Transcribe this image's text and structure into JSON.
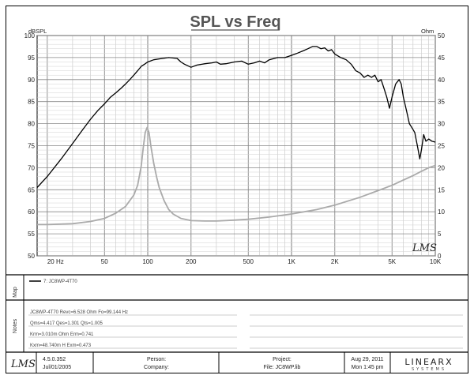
{
  "chart_data": {
    "type": "line",
    "title": "SPL vs Freq",
    "ylabel_left": "dBSPL",
    "ylabel_right": "Ohm",
    "xscale": "log",
    "xlim": [
      17,
      10000
    ],
    "ylim_left": [
      50,
      100
    ],
    "ylim_right": [
      0,
      50
    ],
    "x_ticks": [
      {
        "value": 20,
        "label": "20 Hz"
      },
      {
        "value": 50,
        "label": "50"
      },
      {
        "value": 100,
        "label": "100"
      },
      {
        "value": 200,
        "label": "200"
      },
      {
        "value": 500,
        "label": "500"
      },
      {
        "value": 1000,
        "label": "1K"
      },
      {
        "value": 2000,
        "label": "2K"
      },
      {
        "value": 5000,
        "label": "5K"
      },
      {
        "value": 10000,
        "label": "10K"
      }
    ],
    "y_ticks_left": [
      "50",
      "55",
      "60",
      "65",
      "70",
      "75",
      "80",
      "85",
      "90",
      "95",
      "100"
    ],
    "y_ticks_right": [
      "0",
      "5",
      "10",
      "15",
      "20",
      "25",
      "30",
      "35",
      "40",
      "45",
      "50"
    ],
    "grid": true,
    "series": [
      {
        "axis": "left",
        "color": "#000000",
        "points": [
          [
            17,
            65.5
          ],
          [
            20,
            68
          ],
          [
            25,
            72
          ],
          [
            30,
            75.5
          ],
          [
            35,
            78.5
          ],
          [
            40,
            81
          ],
          [
            45,
            83
          ],
          [
            50,
            84.5
          ],
          [
            55,
            86
          ],
          [
            60,
            87
          ],
          [
            65,
            88
          ],
          [
            70,
            89
          ],
          [
            75,
            90
          ],
          [
            80,
            91
          ],
          [
            85,
            92
          ],
          [
            90,
            93
          ],
          [
            95,
            93.5
          ],
          [
            100,
            94
          ],
          [
            110,
            94.5
          ],
          [
            120,
            94.7
          ],
          [
            140,
            95
          ],
          [
            160,
            94.8
          ],
          [
            170,
            94
          ],
          [
            180,
            93.5
          ],
          [
            200,
            92.8
          ],
          [
            220,
            93.3
          ],
          [
            250,
            93.6
          ],
          [
            280,
            93.8
          ],
          [
            300,
            94
          ],
          [
            320,
            93.5
          ],
          [
            350,
            93.6
          ],
          [
            400,
            94
          ],
          [
            450,
            94.2
          ],
          [
            500,
            93.5
          ],
          [
            550,
            93.8
          ],
          [
            600,
            94.2
          ],
          [
            650,
            93.8
          ],
          [
            700,
            94.5
          ],
          [
            800,
            95
          ],
          [
            900,
            95
          ],
          [
            1000,
            95.5
          ],
          [
            1100,
            96
          ],
          [
            1200,
            96.5
          ],
          [
            1300,
            97
          ],
          [
            1400,
            97.5
          ],
          [
            1500,
            97.5
          ],
          [
            1600,
            97
          ],
          [
            1700,
            97.2
          ],
          [
            1800,
            96.5
          ],
          [
            1900,
            96.8
          ],
          [
            2000,
            95.8
          ],
          [
            2200,
            95
          ],
          [
            2400,
            94.5
          ],
          [
            2600,
            93.5
          ],
          [
            2800,
            92
          ],
          [
            3000,
            91.5
          ],
          [
            3200,
            90.5
          ],
          [
            3400,
            91
          ],
          [
            3600,
            90.5
          ],
          [
            3800,
            91
          ],
          [
            4000,
            89.5
          ],
          [
            4200,
            90
          ],
          [
            4400,
            88
          ],
          [
            4600,
            86
          ],
          [
            4800,
            83.5
          ],
          [
            5000,
            86
          ],
          [
            5300,
            89
          ],
          [
            5600,
            90
          ],
          [
            5800,
            89
          ],
          [
            6000,
            86
          ],
          [
            6300,
            83
          ],
          [
            6600,
            80
          ],
          [
            6900,
            79
          ],
          [
            7200,
            78
          ],
          [
            7500,
            75
          ],
          [
            7800,
            72
          ],
          [
            8000,
            74
          ],
          [
            8300,
            77.5
          ],
          [
            8600,
            76
          ],
          [
            9000,
            76.5
          ],
          [
            9500,
            76
          ],
          [
            10000,
            75.8
          ]
        ]
      },
      {
        "axis": "right",
        "color": "#aaaaaa",
        "points": [
          [
            17,
            7.1
          ],
          [
            20,
            7.1
          ],
          [
            30,
            7.3
          ],
          [
            40,
            7.8
          ],
          [
            50,
            8.5
          ],
          [
            60,
            9.7
          ],
          [
            70,
            11.2
          ],
          [
            80,
            13.8
          ],
          [
            85,
            16
          ],
          [
            90,
            20.3
          ],
          [
            93,
            24.5
          ],
          [
            96,
            28
          ],
          [
            99,
            29.1
          ],
          [
            102,
            28
          ],
          [
            105,
            25
          ],
          [
            110,
            21
          ],
          [
            115,
            18
          ],
          [
            120,
            15.5
          ],
          [
            130,
            12.5
          ],
          [
            140,
            10.5
          ],
          [
            150,
            9.5
          ],
          [
            170,
            8.5
          ],
          [
            200,
            8
          ],
          [
            250,
            7.9
          ],
          [
            300,
            7.9
          ],
          [
            400,
            8.1
          ],
          [
            500,
            8.3
          ],
          [
            700,
            8.8
          ],
          [
            1000,
            9.5
          ],
          [
            1500,
            10.5
          ],
          [
            2000,
            11.5
          ],
          [
            3000,
            13.3
          ],
          [
            4000,
            14.8
          ],
          [
            5000,
            16
          ],
          [
            6000,
            17.2
          ],
          [
            7000,
            18.2
          ],
          [
            8000,
            19.2
          ],
          [
            9000,
            20
          ],
          [
            10000,
            20.5
          ]
        ]
      }
    ],
    "legend": {
      "placement": "left",
      "entry": "7: JC8WP-4T70"
    },
    "annotation": "LMS"
  },
  "sections": {
    "map_label": "Map",
    "notes_label": "Notes",
    "notes": [
      "JC8WP-4T70  Revc=6.528 Ohm  Fo=99.144 Hz",
      "Qms=4.417  Qes=1.301  Qts=1.005",
      "Krm=3.010m Ohm  Erm=0.741",
      "Kxm=48.740m H  Exm=0.473"
    ]
  },
  "footer": {
    "logo": "LMS",
    "version": "4.5.0.352",
    "date_built": "Jul/01/2005",
    "person_label": "Person:",
    "company_label": "Company:",
    "project_label": "Project:",
    "file_label": "File: JC8WP.lib",
    "date": "Aug 29, 2011",
    "time": "Mon  1:45 pm",
    "brand": "LINEARX",
    "brand_sub": "SYSTEMS"
  }
}
